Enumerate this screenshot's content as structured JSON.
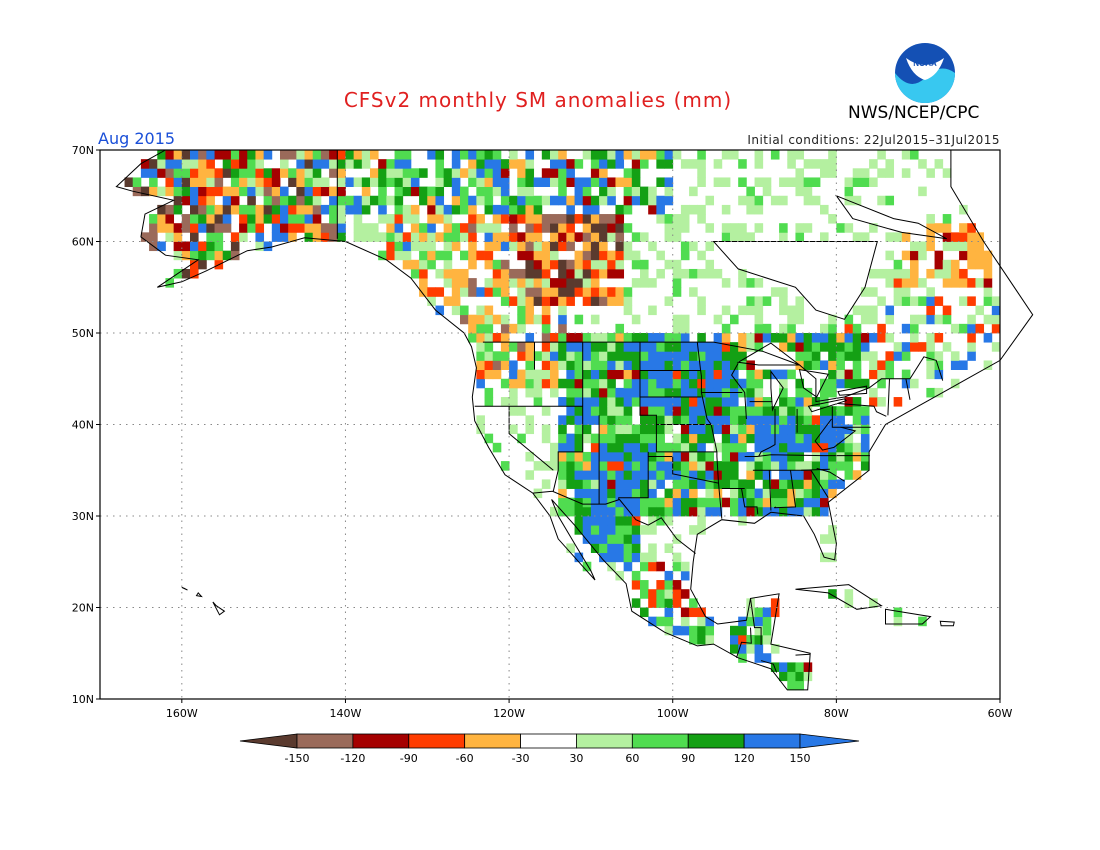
{
  "header": {
    "title": "CFSv2 monthly SM anomalies (mm)",
    "agency": "NWS/NCEP/CPC",
    "logo_text": "NOAA",
    "valid_month": "Aug 2015",
    "initial_conditions": "Initial conditions: 22Jul2015–31Jul2015"
  },
  "map": {
    "lon_range": [
      -170,
      -60
    ],
    "lat_range": [
      10,
      70
    ],
    "lat_ticks": [
      "10N",
      "20N",
      "30N",
      "40N",
      "50N",
      "60N",
      "70N"
    ],
    "lon_ticks": [
      "160W",
      "140W",
      "120W",
      "100W",
      "80W",
      "60W"
    ],
    "gridlines": "dotted",
    "projection": "cylindrical"
  },
  "legend": {
    "labels": [
      "-150",
      "-120",
      "-90",
      "-60",
      "-30",
      "30",
      "60",
      "90",
      "120",
      "150"
    ],
    "colors": [
      "#5a3a2e",
      "#9a6a5a",
      "#a50000",
      "#ff3c00",
      "#ffb440",
      "#ffffff",
      "#b4f0a0",
      "#50dc50",
      "#14a014",
      "#2878e6",
      "#2878e6"
    ]
  },
  "chart_data": {
    "type": "heatmap",
    "title": "CFSv2 monthly SM anomalies (mm)",
    "units": "mm",
    "legend_bins": [
      "< -150",
      "-150 to -120",
      "-120 to -90",
      "-90 to -60",
      "-60 to -30",
      "-30 to 30",
      "30 to 60",
      "60 to 90",
      "90 to 120",
      "120 to 150",
      "> 150"
    ],
    "regions": [
      {
        "region": "Northern Great Plains / Upper Midwest",
        "anomaly": "> 120"
      },
      {
        "region": "Ohio Valley / Mid-Atlantic",
        "anomaly": "> 120"
      },
      {
        "region": "Southwest US / Northwest Mexico",
        "anomaly": "> 120"
      },
      {
        "region": "Central Plains",
        "anomaly": "60 to 120"
      },
      {
        "region": "Western Canada",
        "anomaly": "-150 to -30"
      },
      {
        "region": "Alaska",
        "anomaly": "mixed -90 to 150"
      },
      {
        "region": "Eastern Canada / Labrador",
        "anomaly": "-90 to -30"
      }
    ]
  }
}
